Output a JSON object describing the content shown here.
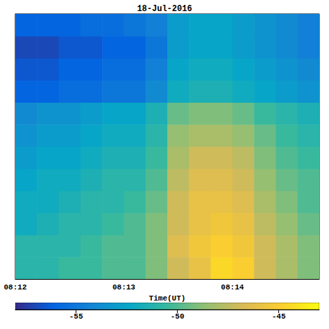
{
  "chart_data": {
    "type": "heatmap",
    "title": "18-Jul-2016",
    "xlabel": "Time(UT)",
    "xlim": [
      12,
      14.8
    ],
    "xticks": [
      {
        "value": 12,
        "label": "08:12"
      },
      {
        "value": 13,
        "label": "08:13"
      },
      {
        "value": 14,
        "label": "08:14"
      }
    ],
    "ylim": [
      0,
      12
    ],
    "tick_labels": "x",
    "x_edges": [
      12.0,
      12.2,
      12.4,
      12.6,
      12.8,
      13.0,
      13.2,
      13.4,
      13.6,
      13.8,
      14.0,
      14.2,
      14.4,
      14.6,
      14.8
    ],
    "y_edges": [
      0,
      1,
      2,
      3,
      4,
      5,
      6,
      7,
      8,
      9,
      10,
      11,
      12
    ],
    "z": [
      [
        -51,
        -51,
        -50.5,
        -50.5,
        -50,
        -50,
        -49,
        -47,
        -46,
        -44.5,
        -45,
        -47,
        -48,
        -49
      ],
      [
        -51,
        -51,
        -51,
        -50.5,
        -50,
        -50,
        -49,
        -46.5,
        -45.5,
        -45,
        -45.5,
        -47,
        -48,
        -49
      ],
      [
        -52,
        -51.5,
        -51,
        -51,
        -50.5,
        -50,
        -49,
        -47,
        -46,
        -45.5,
        -46,
        -47.5,
        -48.5,
        -49.5
      ],
      [
        -52,
        -52,
        -51.5,
        -51,
        -51,
        -50.5,
        -49.5,
        -47,
        -46,
        -46,
        -46.5,
        -48,
        -49,
        -50
      ],
      [
        -52.5,
        -52,
        -52,
        -51.5,
        -51,
        -51,
        -50,
        -47.5,
        -46.5,
        -46.5,
        -47,
        -48.5,
        -49.5,
        -50
      ],
      [
        -53,
        -52.5,
        -52.5,
        -52,
        -51.5,
        -51.5,
        -50.5,
        -48,
        -47,
        -47,
        -47.5,
        -49,
        -50,
        -50.5
      ],
      [
        -53.5,
        -53,
        -53,
        -52.5,
        -52,
        -52,
        -51,
        -48.5,
        -48,
        -48,
        -48.5,
        -49.5,
        -50.5,
        -51
      ],
      [
        -54,
        -53.5,
        -53.5,
        -53,
        -52.5,
        -52.5,
        -51.5,
        -49.5,
        -49,
        -49,
        -49.5,
        -50.5,
        -51,
        -51.5
      ],
      [
        -56,
        -56,
        -55.5,
        -55.5,
        -55,
        -55,
        -54,
        -52,
        -51.5,
        -51.5,
        -52,
        -52.5,
        -53,
        -53.5
      ],
      [
        -56.5,
        -56.5,
        -56,
        -56,
        -55.5,
        -55.5,
        -54.5,
        -52.5,
        -52,
        -52,
        -52.5,
        -53,
        -53.5,
        -54
      ],
      [
        -57,
        -57,
        -56.5,
        -56.5,
        -56,
        -56,
        -55,
        -53,
        -52.5,
        -52.5,
        -53,
        -53.5,
        -54,
        -54.5
      ],
      [
        -56,
        -56,
        -56,
        -55.5,
        -55.5,
        -55,
        -54.5,
        -53,
        -52.5,
        -52.5,
        -53,
        -53.5,
        -54,
        -54.5
      ]
    ],
    "clim": [
      -58,
      -43
    ],
    "cticks": [
      -55,
      -50,
      -45
    ]
  }
}
